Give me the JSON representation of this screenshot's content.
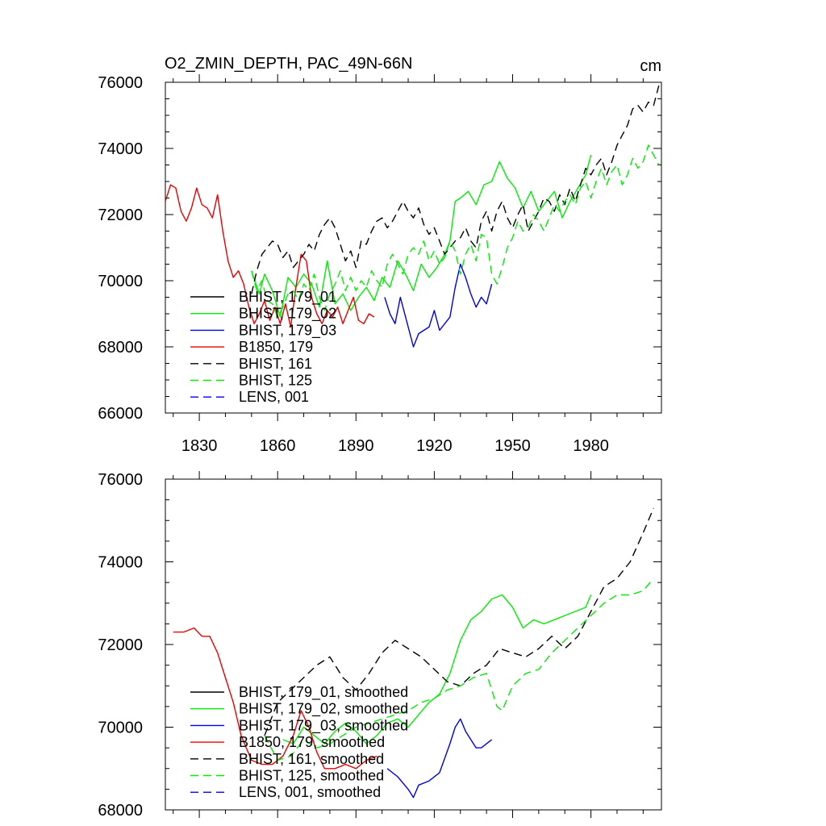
{
  "figure": {
    "title": "O2_ZMIN_DEPTH, PAC_49N-66N",
    "units": "cm"
  },
  "chart_data": [
    {
      "type": "line",
      "panel": "top",
      "title": "O2_ZMIN_DEPTH, PAC_49N-66N",
      "units_label": "cm",
      "xlim": [
        1817,
        2007
      ],
      "ylim": [
        66000,
        76000
      ],
      "xticks": [
        1830,
        1860,
        1890,
        1920,
        1950,
        1980
      ],
      "xtick_labels": [
        "1830",
        "1860",
        "1890",
        "1920",
        "1950",
        "1980"
      ],
      "yticks": [
        66000,
        68000,
        70000,
        72000,
        74000,
        76000
      ],
      "ytick_labels": [
        "66000",
        "68000",
        "70000",
        "72000",
        "74000",
        "76000"
      ],
      "legend_position": "lower-left",
      "series": [
        {
          "name": "BHIST, 179_01",
          "color": "#000000",
          "dash": "solid",
          "x": [],
          "y": []
        },
        {
          "name": "BHIST, 179_02",
          "color": "#00ee00",
          "dash": "solid",
          "x": [
            1850,
            1853,
            1855,
            1858,
            1861,
            1864,
            1867,
            1870,
            1873,
            1876,
            1879,
            1882,
            1885,
            1888,
            1891,
            1894,
            1897,
            1900,
            1903,
            1906,
            1909,
            1912,
            1915,
            1918,
            1921,
            1924,
            1926,
            1928,
            1930,
            1933,
            1936,
            1939,
            1942,
            1945,
            1948,
            1951,
            1954,
            1957,
            1960,
            1963,
            1966,
            1969,
            1972,
            1975,
            1978,
            1980
          ],
          "y": [
            70300,
            69600,
            70200,
            69700,
            68900,
            70100,
            69800,
            70200,
            69900,
            69200,
            70600,
            69300,
            69600,
            69100,
            69500,
            69800,
            69400,
            70100,
            69800,
            70600,
            70200,
            69700,
            70500,
            70100,
            70400,
            70800,
            71200,
            72400,
            72500,
            72700,
            72300,
            72900,
            73000,
            73600,
            73100,
            72800,
            72200,
            72700,
            72100,
            72400,
            72700,
            71900,
            72400,
            72800,
            73200,
            73800
          ]
        },
        {
          "name": "BHIST, 179_03",
          "color": "#0000ee",
          "dash": "solid",
          "x": [
            1901,
            1903,
            1905,
            1907,
            1909,
            1911,
            1912,
            1914,
            1916,
            1918,
            1920,
            1922,
            1924,
            1926,
            1928,
            1930,
            1932,
            1934,
            1936,
            1938,
            1940,
            1942
          ],
          "y": [
            69500,
            69000,
            68700,
            69500,
            68900,
            68300,
            68000,
            68400,
            68500,
            68600,
            69100,
            68500,
            68700,
            68900,
            69800,
            70500,
            70100,
            69600,
            69200,
            69500,
            69300,
            69900
          ]
        },
        {
          "name": "B1850, 179",
          "color": "#ee0000",
          "dash": "solid",
          "x": [
            1817,
            1819,
            1821,
            1823,
            1825,
            1827,
            1829,
            1831,
            1833,
            1835,
            1837,
            1839,
            1841,
            1843,
            1845,
            1847,
            1849,
            1851,
            1853,
            1855,
            1857,
            1859,
            1861,
            1863,
            1865,
            1867,
            1869,
            1871,
            1873,
            1875,
            1877,
            1879,
            1881,
            1883,
            1885,
            1887,
            1889,
            1891,
            1893,
            1895,
            1897
          ],
          "y": [
            72400,
            72900,
            72800,
            72100,
            71800,
            72200,
            72800,
            72300,
            72200,
            71900,
            72600,
            71500,
            70600,
            70100,
            70300,
            69900,
            69200,
            68700,
            69000,
            69400,
            68800,
            69200,
            68700,
            69300,
            68600,
            69800,
            70800,
            70600,
            69500,
            69000,
            68700,
            69100,
            68900,
            69200,
            68700,
            69100,
            69500,
            68800,
            68700,
            69000,
            68900
          ]
        },
        {
          "name": "BHIST, 161",
          "color": "#000000",
          "dash": "dashed",
          "x": [
            1850,
            1852,
            1854,
            1856,
            1858,
            1860,
            1862,
            1864,
            1866,
            1868,
            1870,
            1872,
            1874,
            1876,
            1878,
            1880,
            1882,
            1884,
            1886,
            1888,
            1890,
            1892,
            1894,
            1896,
            1898,
            1900,
            1902,
            1904,
            1906,
            1908,
            1910,
            1912,
            1914,
            1916,
            1918,
            1920,
            1922,
            1924,
            1926,
            1928,
            1930,
            1932,
            1934,
            1936,
            1938,
            1940,
            1942,
            1944,
            1946,
            1948,
            1950,
            1952,
            1954,
            1956,
            1958,
            1960,
            1962,
            1964,
            1966,
            1968,
            1970,
            1972,
            1974,
            1976,
            1978,
            1980,
            1982,
            1984,
            1986,
            1988,
            1990,
            1992,
            1994,
            1996,
            1998,
            2000,
            2002,
            2004,
            2006
          ],
          "y": [
            69600,
            70300,
            70800,
            71000,
            71200,
            71100,
            70700,
            70900,
            70400,
            70600,
            70800,
            71100,
            70900,
            71400,
            71700,
            71900,
            71600,
            71100,
            70600,
            70900,
            70400,
            71200,
            71100,
            71500,
            71800,
            71900,
            71600,
            71800,
            72100,
            72400,
            72100,
            71900,
            72200,
            71700,
            71400,
            71600,
            71200,
            70800,
            71000,
            71200,
            71300,
            71600,
            71200,
            71000,
            71800,
            72100,
            71500,
            72100,
            72400,
            71900,
            71600,
            72000,
            72300,
            71500,
            71800,
            72100,
            72500,
            72400,
            72100,
            72600,
            72300,
            72800,
            72400,
            72900,
            73400,
            73200,
            73500,
            73700,
            73200,
            73600,
            74100,
            74400,
            74700,
            75200,
            75300,
            75100,
            75400,
            75300,
            75900
          ]
        },
        {
          "name": "BHIST, 125",
          "color": "#00ee00",
          "dash": "dashed",
          "x": [
            1850,
            1852,
            1854,
            1856,
            1858,
            1860,
            1862,
            1864,
            1866,
            1868,
            1870,
            1872,
            1874,
            1876,
            1878,
            1880,
            1882,
            1884,
            1886,
            1888,
            1890,
            1892,
            1894,
            1896,
            1898,
            1900,
            1902,
            1904,
            1906,
            1908,
            1910,
            1912,
            1914,
            1916,
            1918,
            1920,
            1922,
            1924,
            1926,
            1928,
            1930,
            1932,
            1934,
            1936,
            1938,
            1940,
            1942,
            1944,
            1946,
            1948,
            1950,
            1952,
            1954,
            1956,
            1958,
            1960,
            1962,
            1964,
            1966,
            1968,
            1970,
            1972,
            1974,
            1976,
            1978,
            1980,
            1982,
            1984,
            1986,
            1988,
            1990,
            1992,
            1994,
            1996,
            1998,
            2000,
            2002,
            2004,
            2006
          ],
          "y": [
            70300,
            69700,
            70000,
            69400,
            69300,
            68900,
            69200,
            69600,
            69700,
            69400,
            69900,
            69700,
            70200,
            69500,
            69100,
            69600,
            69900,
            70300,
            69700,
            70100,
            69700,
            70000,
            69800,
            70300,
            70000,
            69800,
            70500,
            70800,
            70500,
            70200,
            70800,
            71000,
            70800,
            71200,
            70600,
            70900,
            70500,
            70700,
            71200,
            70900,
            70200,
            70800,
            71100,
            70600,
            71400,
            71300,
            70200,
            69900,
            70400,
            71000,
            71300,
            71800,
            71500,
            71600,
            72000,
            71800,
            71500,
            71900,
            72300,
            72100,
            72400,
            72600,
            72300,
            72800,
            73000,
            72500,
            73000,
            73400,
            72900,
            73300,
            73500,
            72900,
            73200,
            73700,
            73400,
            73600,
            74100,
            73800,
            73500
          ]
        },
        {
          "name": "LENS, 001",
          "color": "#0000ee",
          "dash": "dashed",
          "x": [],
          "y": []
        }
      ]
    },
    {
      "type": "line",
      "panel": "bottom",
      "title": "",
      "xlim": [
        1817,
        2007
      ],
      "ylim": [
        68000,
        76000
      ],
      "xticks": [
        1830,
        1860,
        1890,
        1920,
        1950,
        1980
      ],
      "xtick_labels": [
        "",
        "",
        "",
        "",
        "",
        ""
      ],
      "yticks": [
        68000,
        70000,
        72000,
        74000,
        76000
      ],
      "ytick_labels": [
        "68000",
        "70000",
        "72000",
        "74000",
        "76000"
      ],
      "legend_position": "lower-left",
      "series": [
        {
          "name": "BHIST, 179_01, smoothed",
          "color": "#000000",
          "dash": "solid",
          "x": [],
          "y": []
        },
        {
          "name": "BHIST, 179_02, smoothed",
          "color": "#00ee00",
          "dash": "solid",
          "x": [
            1862,
            1866,
            1870,
            1874,
            1878,
            1882,
            1886,
            1890,
            1894,
            1898,
            1902,
            1906,
            1910,
            1914,
            1918,
            1922,
            1926,
            1930,
            1934,
            1938,
            1942,
            1946,
            1950,
            1954,
            1958,
            1962,
            1966,
            1970,
            1974,
            1978,
            1980
          ],
          "y": [
            69700,
            69600,
            70000,
            69800,
            69600,
            69900,
            70100,
            69900,
            69600,
            69800,
            70100,
            70200,
            70000,
            70300,
            70600,
            70800,
            71300,
            72100,
            72600,
            72800,
            73100,
            73200,
            72900,
            72400,
            72600,
            72500,
            72600,
            72700,
            72800,
            72900,
            73200
          ]
        },
        {
          "name": "BHIST, 179_03, smoothed",
          "color": "#0000ee",
          "dash": "solid",
          "x": [
            1902,
            1906,
            1910,
            1912,
            1914,
            1918,
            1922,
            1926,
            1928,
            1930,
            1932,
            1934,
            1936,
            1938,
            1942
          ],
          "y": [
            69000,
            68800,
            68500,
            68300,
            68600,
            68700,
            68900,
            69600,
            70000,
            70200,
            69900,
            69700,
            69500,
            69500,
            69700
          ]
        },
        {
          "name": "B1850, 179, smoothed",
          "color": "#ee0000",
          "dash": "solid",
          "x": [
            1820,
            1824,
            1828,
            1831,
            1834,
            1837,
            1840,
            1843,
            1846,
            1850,
            1854,
            1858,
            1862,
            1866,
            1869,
            1872,
            1875,
            1878,
            1882,
            1886,
            1890,
            1894,
            1898
          ],
          "y": [
            72300,
            72300,
            72400,
            72200,
            72200,
            71800,
            71200,
            70600,
            69800,
            69200,
            69100,
            69100,
            69300,
            69800,
            70400,
            70000,
            69400,
            69000,
            69000,
            69100,
            69000,
            69200,
            69300
          ]
        },
        {
          "name": "BHIST, 161, smoothed",
          "color": "#000000",
          "dash": "dashed",
          "x": [
            1855,
            1860,
            1865,
            1870,
            1875,
            1880,
            1885,
            1890,
            1895,
            1900,
            1905,
            1910,
            1915,
            1920,
            1925,
            1930,
            1935,
            1940,
            1945,
            1950,
            1955,
            1960,
            1965,
            1970,
            1975,
            1980,
            1985,
            1990,
            1995,
            2000,
            2004
          ],
          "y": [
            69800,
            70600,
            70900,
            71200,
            71500,
            71700,
            71200,
            70900,
            71300,
            71800,
            72100,
            71900,
            71700,
            71400,
            71100,
            71000,
            71300,
            71500,
            71900,
            71800,
            71700,
            71900,
            72200,
            71900,
            72200,
            72800,
            73400,
            73600,
            74000,
            74700,
            75300
          ]
        },
        {
          "name": "BHIST, 125, smoothed",
          "color": "#00ee00",
          "dash": "dashed",
          "x": [
            1855,
            1860,
            1865,
            1870,
            1875,
            1880,
            1885,
            1890,
            1895,
            1900,
            1905,
            1910,
            1915,
            1920,
            1925,
            1930,
            1935,
            1940,
            1944,
            1946,
            1950,
            1955,
            1960,
            1965,
            1970,
            1975,
            1980,
            1985,
            1990,
            1995,
            2000,
            2004
          ],
          "y": [
            69800,
            69200,
            69300,
            69700,
            69500,
            69600,
            69800,
            70000,
            70100,
            70200,
            70300,
            70400,
            70600,
            70700,
            70900,
            71000,
            71200,
            71300,
            70500,
            70400,
            71000,
            71300,
            71400,
            71800,
            72100,
            72400,
            72700,
            73000,
            73200,
            73200,
            73300,
            73600
          ]
        },
        {
          "name": "LENS, 001, smoothed",
          "color": "#0000ee",
          "dash": "dashed",
          "x": [],
          "y": []
        }
      ]
    }
  ]
}
